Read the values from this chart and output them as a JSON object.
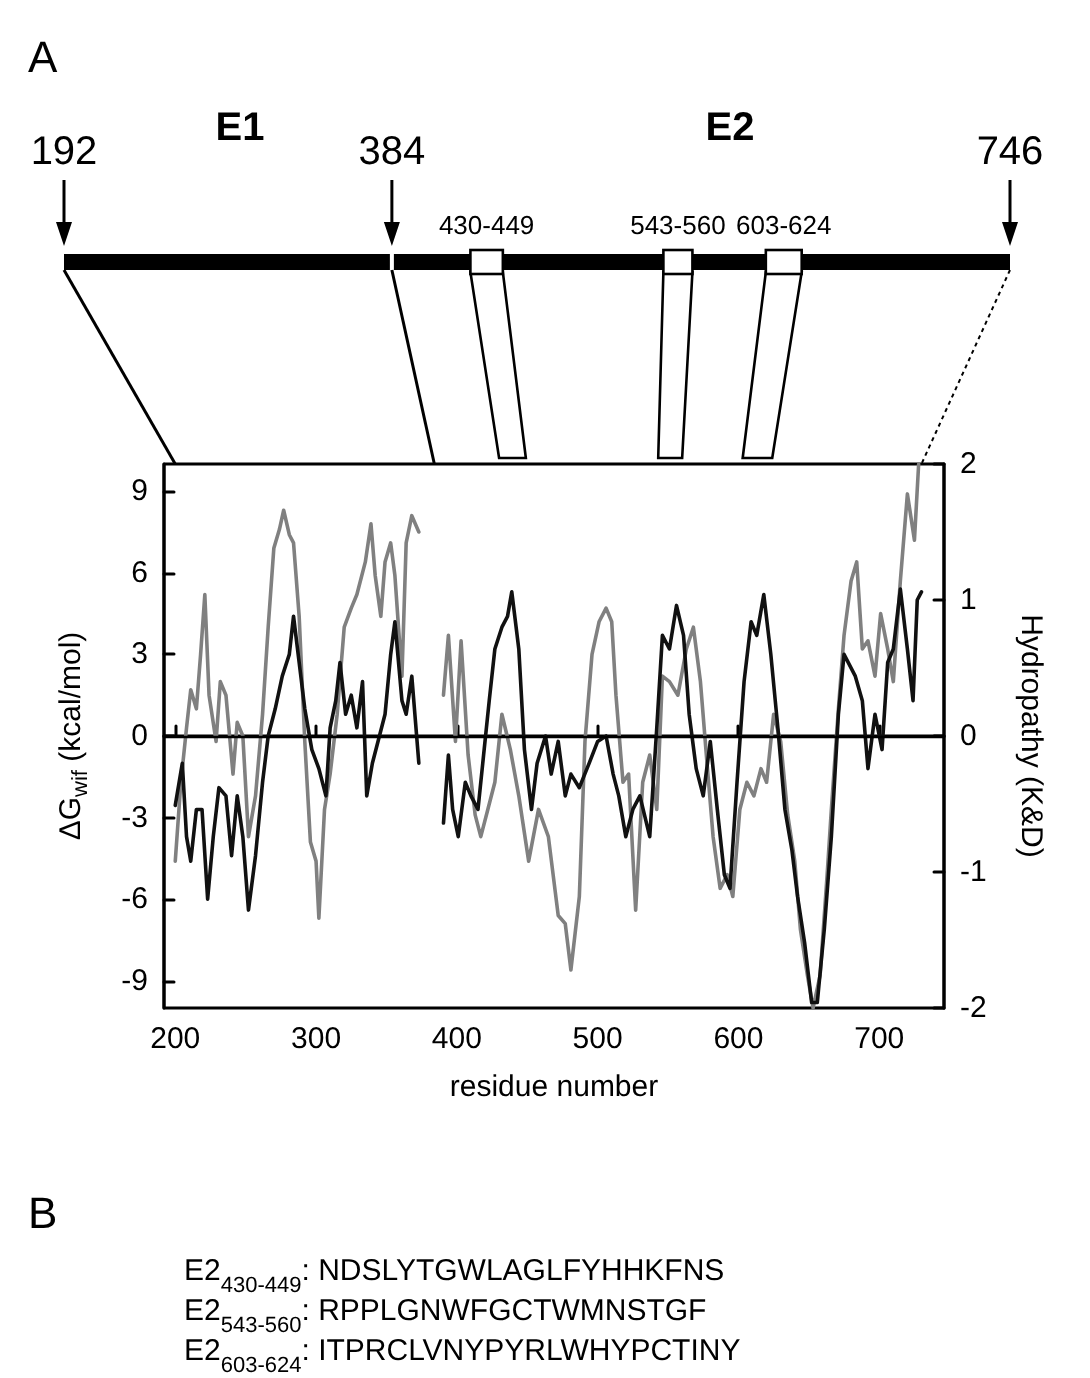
{
  "chart_data": {
    "type": "line",
    "xlabel": "residue number",
    "ylabel": "ΔG$_{wif}$ (kcal/mol)",
    "y2label": "Hydropathy (K&D)",
    "xlim": [
      192,
      746
    ],
    "xticks": [
      200,
      300,
      400,
      500,
      600,
      700
    ],
    "ylim": [
      -10,
      10
    ],
    "yticks": [
      -9,
      -6,
      -3,
      0,
      3,
      6,
      9
    ],
    "y2lim": [
      -2,
      2
    ],
    "y2ticks": [
      -2,
      -1,
      0,
      1,
      2
    ],
    "marker": "none",
    "line_style": "solid",
    "ref_lines": [
      {
        "axis": "y",
        "value": 0,
        "color": "#000000"
      }
    ],
    "annotations": [
      "A",
      "E1",
      "E2",
      "192",
      "384",
      "746",
      "430-449",
      "543-560",
      "603-624",
      "B",
      "E2$_{430-449}$: NDSLYTGWLAGLFYHHKFNS",
      "E2$_{543-560}$: RPPLGNWFGCTWMNSTGF",
      "E2$_{603-624}$: ITPRCLVNYPYRLWHYPCTINY"
    ],
    "series": [
      {
        "color": "#808080",
        "axis": "y2",
        "x": [
          200,
          204,
          208,
          211,
          215,
          218,
          221,
          224,
          229,
          232,
          236,
          241,
          244,
          248,
          252,
          257,
          262,
          266,
          270,
          274,
          277,
          281,
          284,
          288,
          292,
          296,
          300,
          302,
          306,
          310,
          315,
          320,
          325,
          329,
          335,
          339,
          342,
          346,
          349,
          353,
          356,
          361,
          364,
          368,
          373,
          380,
          390.5,
          394,
          399,
          403,
          408,
          413,
          417,
          422,
          427,
          432,
          438,
          444,
          451,
          458,
          465,
          472,
          477,
          481,
          487,
          491,
          496,
          501,
          506,
          510,
          513,
          518,
          522,
          527,
          532,
          537,
          542,
          546,
          551,
          557,
          563,
          568,
          573,
          578,
          582,
          587,
          592,
          596,
          601,
          606,
          611,
          616,
          620,
          625,
          630,
          635,
          640,
          644,
          649,
          653,
          658,
          663,
          666,
          671,
          675,
          680,
          684,
          688,
          692,
          697,
          701,
          706,
          710,
          715,
          720,
          725,
          728
        ],
        "values": [
          -0.92,
          -0.34,
          0.06,
          0.34,
          0.2,
          0.6,
          1.04,
          0.3,
          -0.04,
          0.4,
          0.3,
          -0.28,
          0.1,
          0,
          -0.74,
          -0.44,
          0.16,
          0.8,
          1.38,
          1.52,
          1.66,
          1.48,
          1.42,
          0.88,
          -0.04,
          -0.78,
          -0.92,
          -1.34,
          -0.54,
          -0.28,
          0.16,
          0.8,
          0.94,
          1.04,
          1.28,
          1.56,
          1.18,
          0.88,
          1.28,
          1.42,
          1.18,
          0.44,
          1.42,
          1.62,
          1.5,
          null,
          0.3,
          0.74,
          -0.04,
          0.7,
          -0.14,
          -0.58,
          -0.74,
          -0.54,
          -0.34,
          0.16,
          -0.1,
          -0.44,
          -0.92,
          -0.54,
          -0.74,
          -1.32,
          -1.38,
          -1.72,
          -1.18,
          -0.04,
          0.6,
          0.84,
          0.94,
          0.84,
          0.3,
          -0.34,
          -0.28,
          -1.28,
          -0.34,
          -0.14,
          -0.54,
          0.44,
          0.4,
          0.3,
          0.64,
          0.8,
          0.4,
          -0.24,
          -0.74,
          -1.12,
          -1.02,
          -1.18,
          -0.54,
          -0.34,
          -0.44,
          -0.24,
          -0.34,
          0.16,
          -0.04,
          -0.58,
          -0.92,
          -1.42,
          -1.76,
          -2,
          -1.76,
          -1.02,
          -0.54,
          0.2,
          0.74,
          1.14,
          1.28,
          0.64,
          0.7,
          0.44,
          0.9,
          0.64,
          0.4,
          1.14,
          1.78,
          1.44,
          2
        ]
      },
      {
        "color": "#111111",
        "x": [
          200,
          205,
          208,
          211,
          215,
          219,
          223,
          227,
          231,
          236,
          240,
          244,
          248,
          252,
          257,
          262,
          266,
          271,
          276,
          281,
          284,
          288,
          292,
          297,
          302,
          307,
          310,
          314,
          317,
          321,
          325,
          329,
          333,
          336,
          340,
          344,
          349,
          353,
          356,
          361,
          364,
          368,
          373,
          380,
          390.5,
          394,
          397,
          401,
          406,
          410,
          415,
          419,
          423,
          427,
          432,
          436,
          439,
          444,
          448,
          453,
          457,
          463,
          467,
          472,
          477,
          481,
          487,
          494,
          500,
          506,
          511,
          515,
          520,
          525,
          530,
          537,
          542,
          546,
          551,
          556,
          561,
          565,
          570,
          575,
          580,
          585,
          590,
          594,
          599,
          604,
          609,
          613,
          618,
          623,
          628,
          633,
          638,
          642,
          647,
          652,
          656,
          661,
          666,
          671,
          675,
          683,
          688,
          692,
          697,
          702,
          706,
          710,
          715,
          720,
          724,
          727,
          730
        ],
        "values": [
          -2.55,
          -1,
          -3.7,
          -4.6,
          -2.7,
          -2.7,
          -6,
          -3.7,
          -1.9,
          -2.2,
          -4.4,
          -2.2,
          -3.7,
          -6.4,
          -4.4,
          -1.7,
          0,
          1,
          2.2,
          3,
          4.4,
          2.7,
          1,
          -0.5,
          -1.2,
          -2.2,
          0.3,
          1.3,
          2.7,
          0.8,
          1.5,
          0.3,
          2,
          -2.2,
          -1,
          -0.2,
          0.8,
          3,
          4.2,
          1.3,
          0.8,
          2.2,
          -1,
          null,
          -3.2,
          -0.7,
          -2.7,
          -3.7,
          -1.7,
          -2.2,
          -2.7,
          -0.7,
          1.3,
          3.2,
          4,
          4.4,
          5.3,
          3.2,
          -0.5,
          -2.7,
          -1,
          0,
          -1.4,
          -0.2,
          -2.2,
          -1.4,
          -1.9,
          -1,
          -0.2,
          0,
          -1.4,
          -2.2,
          -3.7,
          -2.7,
          -2.2,
          -3.7,
          0.3,
          3.7,
          3.2,
          4.8,
          3.7,
          0.8,
          -1.2,
          -2.2,
          -0.2,
          -2.7,
          -5.1,
          -5.6,
          -1.7,
          2,
          4.2,
          3.7,
          5.2,
          3,
          0.3,
          -2.7,
          -4.2,
          -5.9,
          -7.6,
          -9.8,
          -9.8,
          -7.1,
          -3.7,
          0.8,
          3,
          2.2,
          1.3,
          -1.2,
          0.8,
          -0.5,
          2.7,
          3.2,
          5.4,
          3.2,
          1.3,
          5,
          5.3
        ]
      }
    ]
  }
}
